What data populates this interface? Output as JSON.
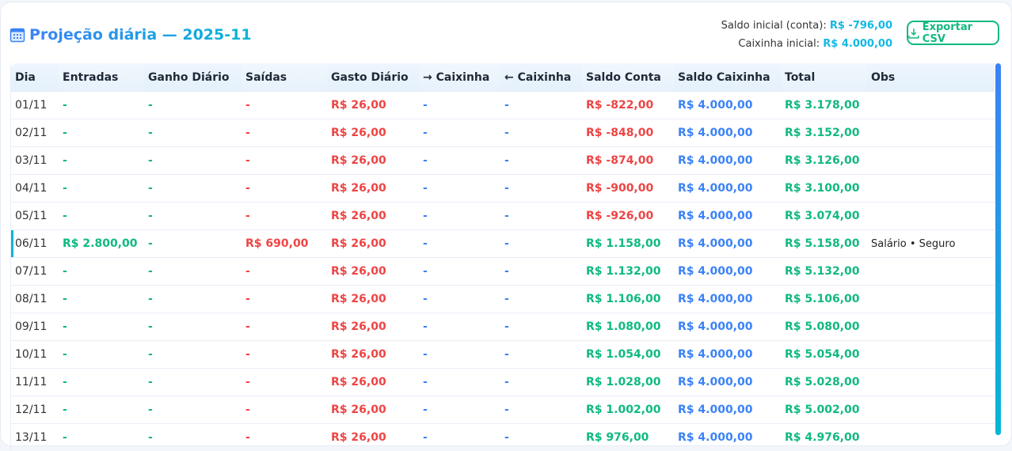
{
  "header": {
    "title": "Projeção diária — 2025-11",
    "title_icon": "calendar-icon",
    "saldo_label": "Saldo inicial (conta):",
    "saldo_value": "R$ -796,00",
    "caixinha_label": "Caixinha inicial:",
    "caixinha_value": "R$ 4.000,00",
    "export_label": "Exportar CSV",
    "export_icon": "download-icon"
  },
  "colors": {
    "green": "#10b981",
    "red": "#ef4444",
    "blue": "#3b82f6",
    "cyan": "#06b6d4"
  },
  "table": {
    "columns": [
      "Dia",
      "Entradas",
      "Ganho Diário",
      "Saídas",
      "Gasto Diário",
      "→ Caixinha",
      "← Caixinha",
      "Saldo Conta",
      "Saldo Caixinha",
      "Total",
      "Obs"
    ],
    "rows": [
      [
        "01/11",
        "-",
        "-",
        "-",
        "R$ 26,00",
        "-",
        "-",
        "R$ -822,00",
        "R$ 4.000,00",
        "R$ 3.178,00",
        ""
      ],
      [
        "02/11",
        "-",
        "-",
        "-",
        "R$ 26,00",
        "-",
        "-",
        "R$ -848,00",
        "R$ 4.000,00",
        "R$ 3.152,00",
        ""
      ],
      [
        "03/11",
        "-",
        "-",
        "-",
        "R$ 26,00",
        "-",
        "-",
        "R$ -874,00",
        "R$ 4.000,00",
        "R$ 3.126,00",
        ""
      ],
      [
        "04/11",
        "-",
        "-",
        "-",
        "R$ 26,00",
        "-",
        "-",
        "R$ -900,00",
        "R$ 4.000,00",
        "R$ 3.100,00",
        ""
      ],
      [
        "05/11",
        "-",
        "-",
        "-",
        "R$ 26,00",
        "-",
        "-",
        "R$ -926,00",
        "R$ 4.000,00",
        "R$ 3.074,00",
        ""
      ],
      [
        "06/11",
        "R$ 2.800,00",
        "-",
        "R$ 690,00",
        "R$ 26,00",
        "-",
        "-",
        "R$ 1.158,00",
        "R$ 4.000,00",
        "R$ 5.158,00",
        "Salário • Seguro"
      ],
      [
        "07/11",
        "-",
        "-",
        "-",
        "R$ 26,00",
        "-",
        "-",
        "R$ 1.132,00",
        "R$ 4.000,00",
        "R$ 5.132,00",
        ""
      ],
      [
        "08/11",
        "-",
        "-",
        "-",
        "R$ 26,00",
        "-",
        "-",
        "R$ 1.106,00",
        "R$ 4.000,00",
        "R$ 5.106,00",
        ""
      ],
      [
        "09/11",
        "-",
        "-",
        "-",
        "R$ 26,00",
        "-",
        "-",
        "R$ 1.080,00",
        "R$ 4.000,00",
        "R$ 5.080,00",
        ""
      ],
      [
        "10/11",
        "-",
        "-",
        "-",
        "R$ 26,00",
        "-",
        "-",
        "R$ 1.054,00",
        "R$ 4.000,00",
        "R$ 5.054,00",
        ""
      ],
      [
        "11/11",
        "-",
        "-",
        "-",
        "R$ 26,00",
        "-",
        "-",
        "R$ 1.028,00",
        "R$ 4.000,00",
        "R$ 5.028,00",
        ""
      ],
      [
        "12/11",
        "-",
        "-",
        "-",
        "R$ 26,00",
        "-",
        "-",
        "R$ 1.002,00",
        "R$ 4.000,00",
        "R$ 5.002,00",
        ""
      ],
      [
        "13/11",
        "-",
        "-",
        "-",
        "R$ 26,00",
        "-",
        "-",
        "R$ 976,00",
        "R$ 4.000,00",
        "R$ 4.976,00",
        ""
      ]
    ]
  }
}
